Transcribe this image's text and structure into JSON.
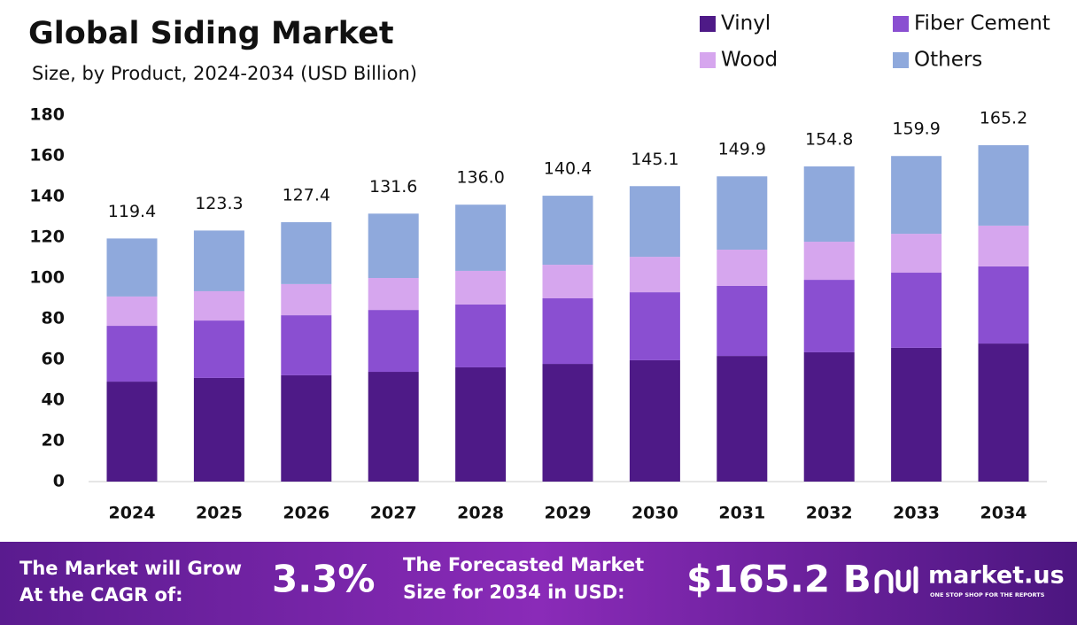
{
  "chart_data": {
    "type": "stacked-bar",
    "title": "Global Siding Market",
    "subtitle": "Size, by Product, 2024-2034 (USD Billion)",
    "categories": [
      "2024",
      "2025",
      "2026",
      "2027",
      "2028",
      "2029",
      "2030",
      "2031",
      "2032",
      "2033",
      "2034"
    ],
    "series": [
      {
        "name": "Vinyl",
        "color": "#4e1a87",
        "values": [
          49.1,
          50.9,
          52.2,
          53.9,
          56.1,
          57.8,
          59.6,
          61.7,
          63.5,
          65.7,
          67.8
        ]
      },
      {
        "name": "Fiber Cement",
        "color": "#8a4fd1",
        "values": [
          27.4,
          28.2,
          29.5,
          30.4,
          30.9,
          32.2,
          33.4,
          34.4,
          35.6,
          36.9,
          37.9
        ]
      },
      {
        "name": "Wood",
        "color": "#d6a6ee",
        "values": [
          14.4,
          14.4,
          15.3,
          15.7,
          16.5,
          16.5,
          17.4,
          17.8,
          18.7,
          19.1,
          20.0
        ]
      },
      {
        "name": "Others",
        "color": "#8fa9dc",
        "values": [
          28.5,
          29.8,
          30.4,
          31.6,
          32.5,
          33.9,
          34.7,
          36.0,
          37.0,
          38.2,
          39.5
        ]
      }
    ],
    "totals": [
      119.4,
      123.3,
      127.4,
      131.6,
      136.0,
      140.4,
      145.1,
      149.9,
      154.8,
      159.9,
      165.2
    ],
    "total_labels": [
      "119.4",
      "123.3",
      "127.4",
      "131.6",
      "136.0",
      "140.4",
      "145.1",
      "149.9",
      "154.8",
      "159.9",
      "165.2"
    ],
    "ylim": [
      0,
      180
    ],
    "yticks": [
      0,
      20,
      40,
      60,
      80,
      100,
      120,
      140,
      160,
      180
    ],
    "grid": false,
    "legend": "top-right"
  },
  "footer": {
    "cagr_text": [
      "The Market will Grow",
      "At the CAGR of:"
    ],
    "cagr_value": "3.3%",
    "forecast_text": [
      "The Forecasted Market",
      "Size for 2034 in USD:"
    ],
    "forecast_value": "$165.2 B",
    "brand": "market.us",
    "tagline": "ONE STOP SHOP FOR THE REPORTS"
  }
}
